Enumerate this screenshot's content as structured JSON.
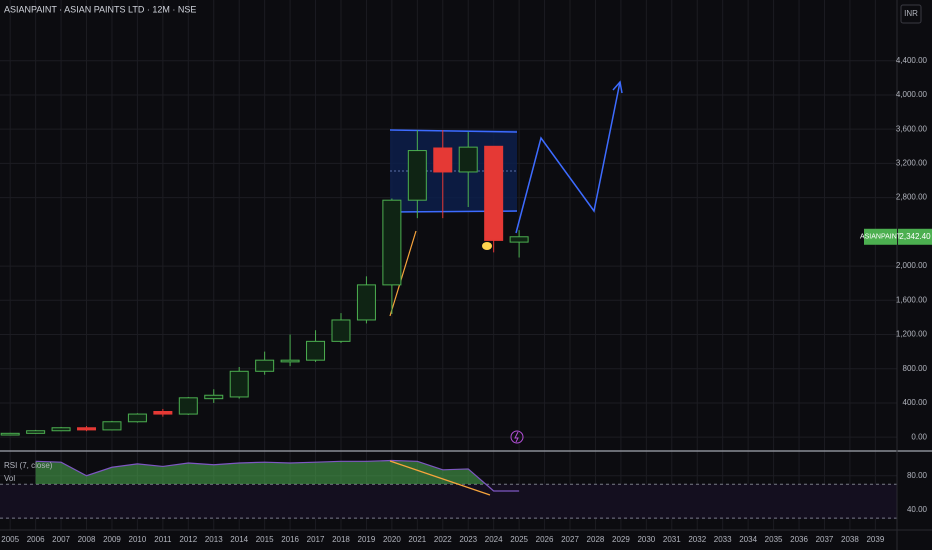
{
  "chart_data": [
    {
      "type": "candlestick",
      "title": "ASIANPAINT · ASIAN PAINTS LTD · 12M · NSE",
      "currency": "INR",
      "x": [
        2005,
        2006,
        2007,
        2008,
        2009,
        2010,
        2011,
        2012,
        2013,
        2014,
        2015,
        2016,
        2017,
        2018,
        2019,
        2020,
        2021,
        2022,
        2023,
        2024,
        2025
      ],
      "open": [
        25,
        45,
        75,
        110,
        85,
        180,
        300,
        270,
        450,
        470,
        770,
        880,
        900,
        1120,
        1370,
        1780,
        2770,
        3380,
        3100,
        3400,
        2280
      ],
      "high": [
        50,
        85,
        120,
        130,
        190,
        280,
        330,
        470,
        560,
        820,
        1000,
        1200,
        1250,
        1450,
        1880,
        2790,
        3590,
        3590,
        3570,
        3400,
        2420
      ],
      "low": [
        20,
        40,
        70,
        70,
        80,
        170,
        240,
        260,
        400,
        450,
        730,
        830,
        880,
        1100,
        1330,
        1440,
        2560,
        2560,
        2690,
        2160,
        2100
      ],
      "close": [
        45,
        75,
        110,
        85,
        180,
        270,
        270,
        460,
        490,
        770,
        900,
        900,
        1120,
        1370,
        1780,
        2770,
        3350,
        3100,
        3390,
        2300,
        2342.4
      ],
      "up_color": "#4caf50",
      "down_color": "#e53935",
      "xlim": [
        2004.6,
        2039.85
      ],
      "xticks": [
        2005,
        2006,
        2007,
        2008,
        2009,
        2010,
        2011,
        2012,
        2013,
        2014,
        2015,
        2016,
        2017,
        2018,
        2019,
        2020,
        2021,
        2022,
        2023,
        2024,
        2025,
        2026,
        2027,
        2028,
        2029,
        2030,
        2031,
        2032,
        2033,
        2034,
        2035,
        2036,
        2037,
        2038,
        2039
      ],
      "ylim": [
        -150,
        5110
      ],
      "yticks": [
        {
          "value": 0,
          "label": "0.00"
        },
        {
          "value": 400,
          "label": "400.00"
        },
        {
          "value": 800,
          "label": "800.00"
        },
        {
          "value": 1200,
          "label": "1,200.00"
        },
        {
          "value": 1600,
          "label": "1,600.00"
        },
        {
          "value": 2000,
          "label": "2,000.00"
        },
        {
          "value": 2800,
          "label": "2,800.00"
        },
        {
          "value": 3200,
          "label": "3,200.00"
        },
        {
          "value": 3600,
          "label": "3,600.00"
        },
        {
          "value": 4000,
          "label": "4,000.00"
        },
        {
          "value": 4400,
          "label": "4,400.00"
        }
      ],
      "grid": true,
      "last_price": {
        "value": 2342.4,
        "label": "2,342.40"
      },
      "symbol_label": "ASIANPAINT"
    },
    {
      "type": "area",
      "title": "RSI (7, close)",
      "volume_label": "Vol",
      "x": [
        2005,
        2006,
        2007,
        2008,
        2009,
        2010,
        2011,
        2012,
        2013,
        2014,
        2015,
        2016,
        2017,
        2018,
        2019,
        2020,
        2021,
        2022,
        2023,
        2024,
        2025
      ],
      "values": [
        null,
        97,
        96,
        80,
        90,
        94,
        91,
        95,
        93,
        95,
        96,
        95,
        96,
        97,
        97,
        98,
        97,
        87,
        88,
        62,
        62
      ],
      "color": "#4caf50",
      "line_color": "#7e57c2",
      "ylim": [
        16,
        108
      ],
      "yticks": [
        {
          "value": 80,
          "label": "80.00"
        },
        {
          "value": 40,
          "label": "40.00"
        }
      ],
      "levels": [
        70,
        30
      ]
    }
  ]
}
